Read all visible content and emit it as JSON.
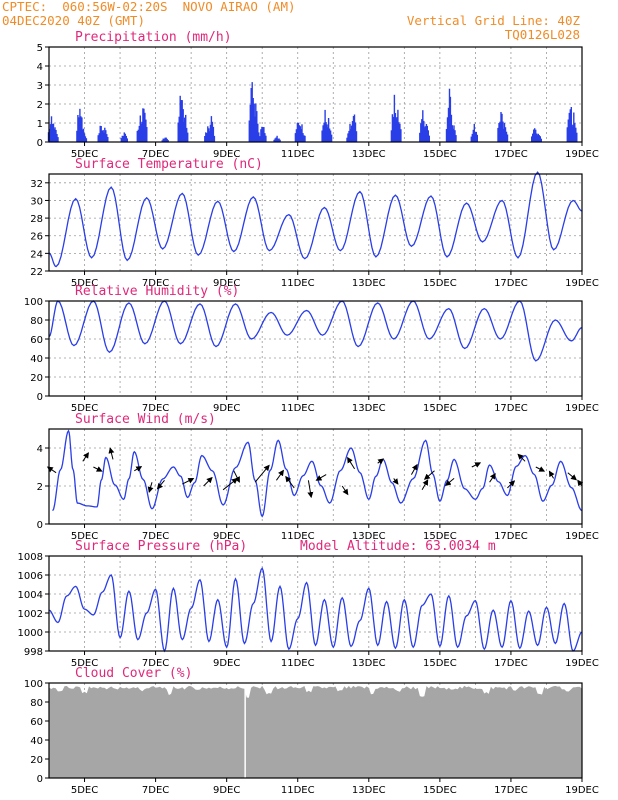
{
  "header": {
    "line1": "CPTEC:  060:56W-02:20S  NOVO AIRAO (AM)",
    "line2": "04DEC2020 40Z (GMT)",
    "right1": "Vertical Grid Line: 40Z",
    "right2": "TQ0126L028"
  },
  "colors": {
    "header": "#f08c28",
    "title": "#e0287a",
    "line": "#2a3ee8",
    "bar": "#2a3ee8",
    "cloud": "#a6a6a6",
    "grid": "#9a9a9a",
    "arrow": "#000000"
  },
  "x_labels": [
    "5DEC",
    "7DEC",
    "9DEC",
    "11DEC",
    "13DEC",
    "15DEC",
    "17DEC",
    "19DEC"
  ],
  "chart_data": [
    {
      "type": "bar",
      "title": "Precipitation (mm/h)",
      "ylim": [
        0,
        5
      ],
      "yticks": [
        0,
        1,
        2,
        3,
        4,
        5
      ],
      "x_start_day": 4.0,
      "x_end_day": 19.0,
      "events": [
        [
          4.05,
          1.5
        ],
        [
          4.15,
          0.9
        ],
        [
          4.85,
          2.2
        ],
        [
          4.95,
          0.7
        ],
        [
          5.45,
          1.0
        ],
        [
          5.55,
          0.8
        ],
        [
          6.1,
          0.5
        ],
        [
          6.55,
          1.4
        ],
        [
          6.65,
          1.9
        ],
        [
          7.25,
          0.3
        ],
        [
          7.7,
          2.5
        ],
        [
          7.8,
          1.5
        ],
        [
          8.45,
          0.8
        ],
        [
          8.55,
          1.2
        ],
        [
          9.7,
          3.0
        ],
        [
          9.8,
          1.7
        ],
        [
          10.0,
          1.0
        ],
        [
          10.4,
          0.3
        ],
        [
          11.0,
          1.2
        ],
        [
          11.1,
          0.8
        ],
        [
          11.75,
          1.6
        ],
        [
          11.85,
          1.1
        ],
        [
          12.45,
          0.8
        ],
        [
          12.55,
          1.6
        ],
        [
          13.7,
          2.1
        ],
        [
          13.8,
          1.7
        ],
        [
          14.5,
          1.5
        ],
        [
          14.6,
          1.0
        ],
        [
          15.25,
          2.5
        ],
        [
          15.35,
          0.9
        ],
        [
          15.95,
          0.9
        ],
        [
          16.7,
          1.8
        ],
        [
          16.8,
          1.0
        ],
        [
          17.65,
          0.9
        ],
        [
          17.75,
          0.5
        ],
        [
          18.65,
          1.9
        ],
        [
          18.75,
          1.3
        ]
      ]
    },
    {
      "type": "line",
      "title": "Surface Temperature (nC)",
      "ylim": [
        22,
        33
      ],
      "yticks": [
        22,
        24,
        26,
        28,
        30,
        32
      ],
      "x_start_day": 4.0,
      "x_end_day": 19.0,
      "mins": [
        22.5,
        23.5,
        23.2,
        24.5,
        23.8,
        24.2,
        24.3,
        23.4,
        24.3,
        23.6,
        24.8,
        23.6,
        25.3,
        23.5,
        24.4
      ],
      "maxs": [
        30.2,
        31.5,
        30.3,
        30.8,
        29.9,
        30.4,
        28.4,
        29.2,
        31.0,
        30.6,
        30.5,
        29.7,
        30.0,
        33.2,
        30.0
      ]
    },
    {
      "type": "line",
      "title": "Relative Humidity (%)",
      "ylim": [
        0,
        100
      ],
      "yticks": [
        0,
        20,
        40,
        60,
        80,
        100
      ],
      "x_start_day": 4.0,
      "x_end_day": 19.0,
      "mins": [
        53,
        46,
        55,
        55,
        52,
        60,
        64,
        64,
        52,
        60,
        60,
        50,
        60,
        37,
        58
      ],
      "maxs": [
        100,
        100,
        98,
        100,
        97,
        97,
        88,
        90,
        100,
        98,
        100,
        92,
        92,
        100,
        80
      ]
    },
    {
      "type": "line",
      "title": "Surface Wind (m/s)",
      "ylim": [
        0,
        5
      ],
      "yticks": [
        0,
        2,
        4
      ],
      "x_start_day": 4.0,
      "x_end_day": 19.0,
      "peaks": [
        [
          4.55,
          4.9
        ],
        [
          5.6,
          3.5
        ],
        [
          6.4,
          3.8
        ],
        [
          7.5,
          3.0
        ],
        [
          8.3,
          3.6
        ],
        [
          9.6,
          4.3
        ],
        [
          10.45,
          4.4
        ],
        [
          11.4,
          3.3
        ],
        [
          12.5,
          4.0
        ],
        [
          13.4,
          3.4
        ],
        [
          14.6,
          4.4
        ],
        [
          15.4,
          3.4
        ],
        [
          16.4,
          3.1
        ],
        [
          17.4,
          3.6
        ],
        [
          18.4,
          3.3
        ]
      ],
      "troughs": [
        [
          4.1,
          0.7
        ],
        [
          4.8,
          1.1
        ],
        [
          5.35,
          0.9
        ],
        [
          6.1,
          1.3
        ],
        [
          6.9,
          0.8
        ],
        [
          7.9,
          1.4
        ],
        [
          8.9,
          1.0
        ],
        [
          10.0,
          0.4
        ],
        [
          10.9,
          1.5
        ],
        [
          11.9,
          1.1
        ],
        [
          13.0,
          1.3
        ],
        [
          13.9,
          1.1
        ],
        [
          15.0,
          1.2
        ],
        [
          16.0,
          1.3
        ],
        [
          16.9,
          1.5
        ],
        [
          17.9,
          1.2
        ],
        [
          19.0,
          0.7
        ]
      ],
      "vectors": [
        [
          4.2,
          2.7,
          -6,
          -4
        ],
        [
          4.95,
          3.3,
          4,
          -6
        ],
        [
          5.25,
          3.0,
          6,
          3
        ],
        [
          5.8,
          3.4,
          -2,
          -8
        ],
        [
          6.4,
          2.8,
          5,
          -3
        ],
        [
          6.9,
          2.2,
          -2,
          7
        ],
        [
          7.25,
          2.3,
          -5,
          6
        ],
        [
          7.75,
          2.1,
          8,
          -4
        ],
        [
          8.35,
          2.0,
          6,
          -6
        ],
        [
          8.9,
          1.8,
          10,
          -8
        ],
        [
          9.2,
          2.8,
          4,
          8
        ],
        [
          9.8,
          2.2,
          10,
          -12
        ],
        [
          10.4,
          2.3,
          5,
          -7
        ],
        [
          10.9,
          1.9,
          -6,
          -8
        ],
        [
          11.3,
          2.3,
          2,
          12
        ],
        [
          11.8,
          2.6,
          -7,
          4
        ],
        [
          12.25,
          2.0,
          4,
          6
        ],
        [
          12.6,
          2.9,
          -5,
          -8
        ],
        [
          13.25,
          3.2,
          4,
          -3
        ],
        [
          13.7,
          2.4,
          3,
          4
        ],
        [
          14.2,
          2.6,
          4,
          -7
        ],
        [
          14.5,
          1.8,
          4,
          -7
        ],
        [
          14.85,
          2.8,
          -7,
          6
        ],
        [
          15.4,
          2.4,
          -6,
          5
        ],
        [
          15.9,
          3.0,
          6,
          -3
        ],
        [
          16.4,
          2.2,
          4,
          -6
        ],
        [
          16.9,
          1.9,
          5,
          -5
        ],
        [
          17.4,
          3.3,
          -5,
          -5
        ],
        [
          17.7,
          3.0,
          6,
          3
        ],
        [
          18.2,
          2.4,
          -3,
          -5
        ],
        [
          18.6,
          2.7,
          6,
          5
        ],
        [
          19.0,
          2.0,
          -3,
          -4
        ]
      ]
    },
    {
      "type": "line",
      "title": "Surface Pressure (hPa)",
      "annotation": "Model Altitude: 63.0034 m",
      "ylim": [
        998,
        1008
      ],
      "yticks": [
        998,
        1000,
        1002,
        1004,
        1006,
        1008
      ],
      "x_start_day": 4.0,
      "x_end_day": 19.0,
      "series": [
        1002.3,
        1001.0,
        1003.8,
        1004.8,
        1002.4,
        1001.8,
        1004.2,
        1006.0,
        999.4,
        1004.3,
        999.2,
        1002.0,
        1004.5,
        998.0,
        1004.6,
        999.2,
        1002.5,
        1005.5,
        999.0,
        1003.4,
        998.4,
        1005.6,
        998.8,
        1003.0,
        1006.7,
        999.0,
        1004.8,
        998.2,
        1001.4,
        1005.2,
        998.6,
        1003.4,
        998.4,
        1003.6,
        998.5,
        1001.2,
        1004.6,
        998.6,
        1003.2,
        998.3,
        1003.4,
        998.4,
        1002.8,
        1004.0,
        998.5,
        1003.8,
        998.4,
        1001.7,
        1003.3,
        998.2,
        1002.3,
        998.4,
        1003.3,
        998.3,
        1002.2,
        998.6,
        1002.6,
        998.8,
        1003.0,
        998.0,
        1000.0
      ]
    },
    {
      "type": "bar",
      "title": "Cloud Cover (%)",
      "ylim": [
        0,
        100
      ],
      "yticks": [
        0,
        20,
        40,
        60,
        80,
        100
      ],
      "x_start_day": 4.0,
      "x_end_day": 19.0,
      "typical_value": 95,
      "dips": [
        [
          4.3,
          90
        ],
        [
          5.0,
          88
        ],
        [
          5.9,
          91
        ],
        [
          6.6,
          90
        ],
        [
          7.4,
          86
        ],
        [
          8.2,
          92
        ],
        [
          9.6,
          82
        ],
        [
          10.2,
          88
        ],
        [
          10.5,
          93
        ],
        [
          11.3,
          89
        ],
        [
          12.2,
          90
        ],
        [
          13.1,
          86
        ],
        [
          13.8,
          90
        ],
        [
          14.5,
          84
        ],
        [
          15.2,
          92
        ],
        [
          16.3,
          88
        ],
        [
          17.1,
          91
        ],
        [
          17.8,
          87
        ],
        [
          18.6,
          90
        ]
      ],
      "gap_day": 9.5
    }
  ]
}
